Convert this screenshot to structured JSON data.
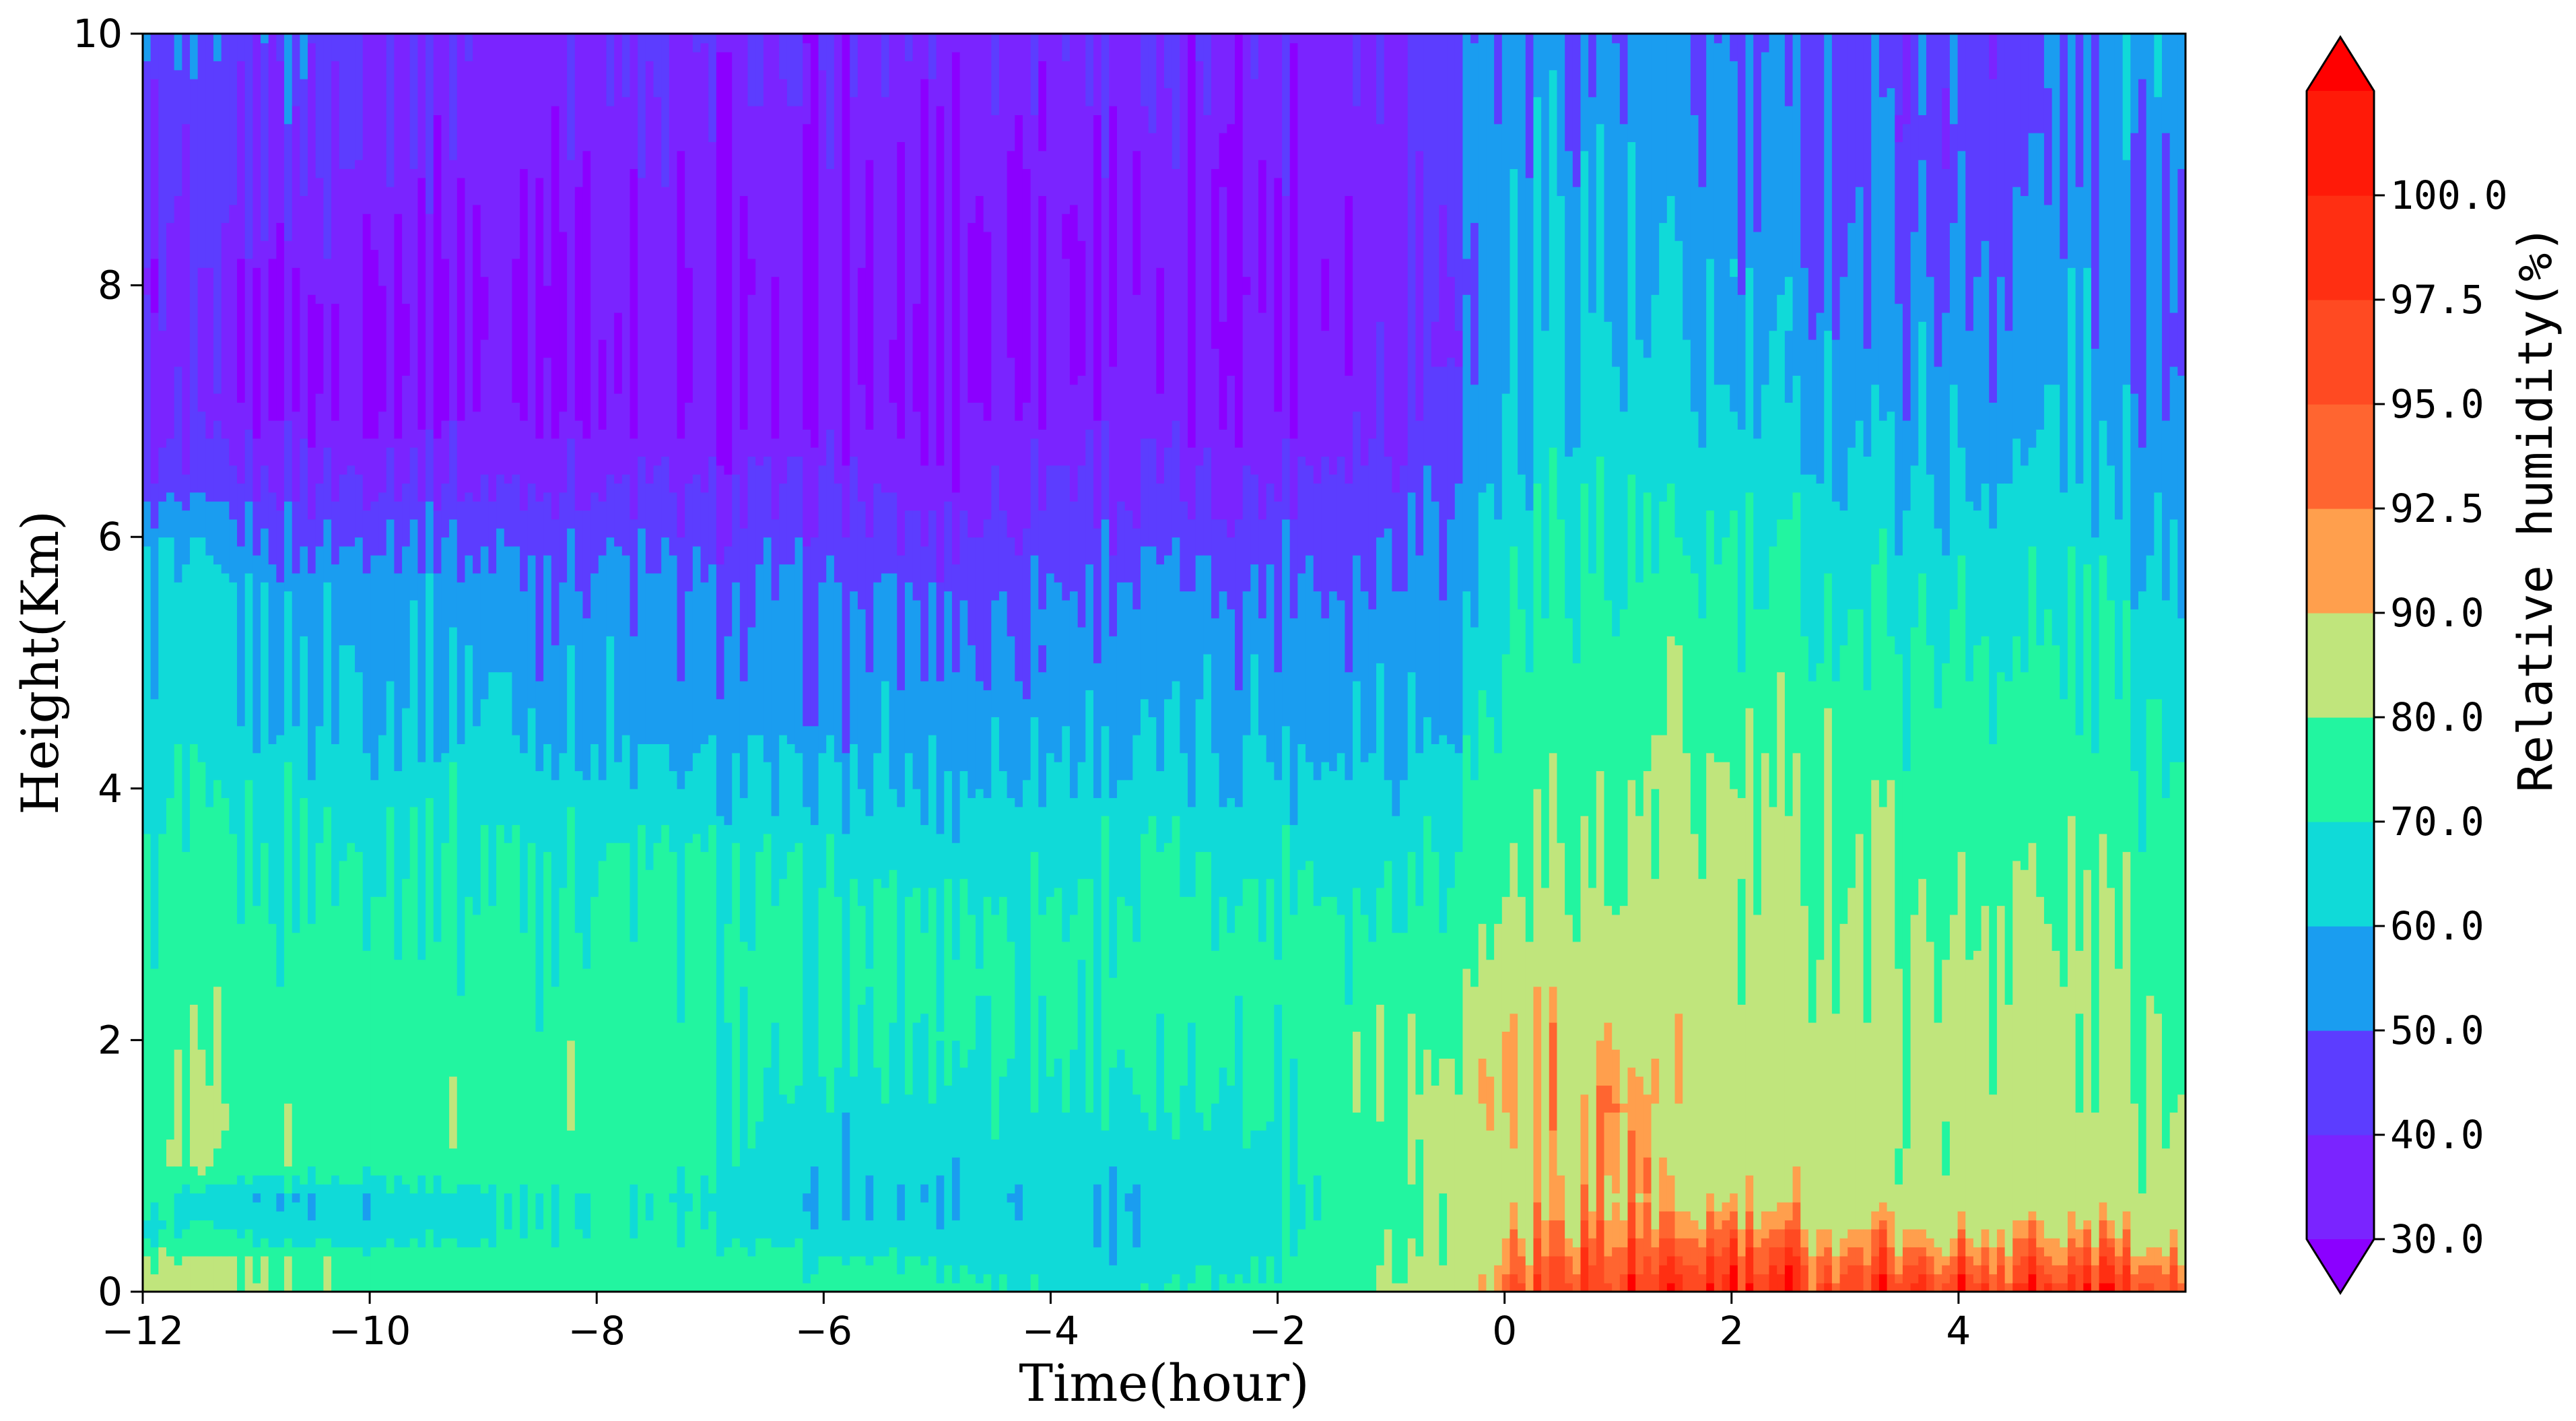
{
  "chart_data": {
    "type": "heatmap",
    "subtype": "filled-contour",
    "title": "",
    "xlabel": "Time(hour)",
    "ylabel": "Height(Km)",
    "xlim": [
      -12,
      6
    ],
    "ylim": [
      0,
      10
    ],
    "xticks": [
      -12,
      -10,
      -8,
      -6,
      -4,
      -2,
      0,
      2,
      4
    ],
    "xtick_labels": [
      "−12",
      "−10",
      "−8",
      "−6",
      "−4",
      "−2",
      "0",
      "2",
      "4"
    ],
    "yticks": [
      0,
      2,
      4,
      6,
      8,
      10
    ],
    "ytick_labels": [
      "0",
      "2",
      "4",
      "6",
      "8",
      "10"
    ],
    "grid": false,
    "colorbar": {
      "label": "Relative humidity(%)",
      "position": "right",
      "levels": [
        30.0,
        40.0,
        50.0,
        60.0,
        70.0,
        80.0,
        90.0,
        92.5,
        95.0,
        97.5,
        100.0
      ],
      "level_labels": [
        "30.0",
        "40.0",
        "50.0",
        "60.0",
        "70.0",
        "80.0",
        "90.0",
        "92.5",
        "95.0",
        "97.5",
        "100.0"
      ],
      "colors": [
        "#7a24ff",
        "#5c3dff",
        "#1a9df0",
        "#10dad8",
        "#22f5a0",
        "#c0e57c",
        "#ff9f4d",
        "#ff6530",
        "#ff4a22",
        "#ff2f12",
        "#ff1a08"
      ],
      "extend_low_color": "#8b00ff",
      "extend_high_color": "#ff0000"
    },
    "profile_heights": [
      0,
      0.25,
      0.5,
      0.75,
      1,
      1.5,
      2,
      2.5,
      3,
      3.5,
      4,
      4.5,
      5,
      5.5,
      6,
      6.5,
      7,
      7.5,
      8,
      8.5,
      9,
      9.5,
      10
    ],
    "times": [
      -12,
      -11.5,
      -11,
      -10.5,
      -10,
      -9.5,
      -9,
      -8.5,
      -8,
      -7.5,
      -7,
      -6.5,
      -6,
      -5.5,
      -5,
      -4.5,
      -4,
      -3.5,
      -3,
      -2.5,
      -2,
      -1.5,
      -1,
      -0.5,
      0,
      0.5,
      1,
      1.5,
      2,
      2.5,
      3,
      3.5,
      4,
      4.5,
      5,
      5.5,
      6
    ],
    "profiles": [
      [
        86,
        82,
        66,
        78,
        76,
        76,
        74,
        74,
        73,
        70,
        67,
        63,
        62,
        61,
        58,
        43,
        36,
        35,
        35,
        38,
        40,
        44,
        45
      ],
      [
        84,
        80,
        70,
        64,
        80,
        81,
        76,
        74,
        73,
        71,
        68,
        64,
        62,
        60,
        56,
        42,
        35,
        34,
        34,
        37,
        40,
        43,
        44
      ],
      [
        82,
        78,
        66,
        62,
        76,
        76,
        75,
        74,
        72,
        70,
        67,
        63,
        60,
        58,
        50,
        40,
        33,
        31,
        32,
        36,
        40,
        43,
        45
      ],
      [
        80,
        78,
        64,
        62,
        76,
        76,
        75,
        74,
        72,
        70,
        66,
        62,
        60,
        57,
        48,
        39,
        33,
        31,
        33,
        37,
        41,
        45,
        46
      ],
      [
        78,
        76,
        64,
        64,
        76,
        76,
        75,
        74,
        72,
        70,
        66,
        62,
        60,
        58,
        50,
        40,
        33,
        31,
        32,
        36,
        40,
        42,
        43
      ],
      [
        76,
        76,
        66,
        66,
        76,
        76,
        75,
        74,
        72,
        70,
        66,
        62,
        60,
        58,
        50,
        40,
        33,
        31,
        31,
        33,
        36,
        38,
        40
      ],
      [
        76,
        76,
        68,
        68,
        76,
        76,
        75,
        74,
        72,
        70,
        66,
        62,
        58,
        56,
        48,
        38,
        32,
        30,
        30,
        32,
        34,
        36,
        38
      ],
      [
        76,
        76,
        70,
        70,
        76,
        77,
        76,
        74,
        72,
        70,
        65,
        60,
        56,
        54,
        47,
        38,
        32,
        31,
        30,
        32,
        34,
        36,
        38
      ],
      [
        76,
        76,
        72,
        72,
        76,
        77,
        76,
        74,
        72,
        70,
        64,
        58,
        56,
        54,
        48,
        38,
        32,
        31,
        31,
        33,
        35,
        37,
        39
      ],
      [
        76,
        76,
        70,
        68,
        74,
        76,
        75,
        74,
        72,
        68,
        62,
        56,
        54,
        52,
        45,
        37,
        31,
        30,
        30,
        32,
        34,
        36,
        38
      ],
      [
        76,
        74,
        68,
        66,
        70,
        72,
        72,
        72,
        71,
        68,
        62,
        56,
        52,
        50,
        42,
        36,
        31,
        30,
        30,
        31,
        33,
        35,
        37
      ],
      [
        76,
        72,
        64,
        62,
        64,
        68,
        71,
        72,
        70,
        67,
        61,
        55,
        52,
        50,
        43,
        37,
        32,
        31,
        30,
        31,
        33,
        35,
        37
      ],
      [
        76,
        70,
        62,
        60,
        62,
        66,
        70,
        72,
        70,
        66,
        60,
        55,
        52,
        50,
        44,
        38,
        32,
        31,
        30,
        31,
        33,
        35,
        37
      ],
      [
        76,
        70,
        62,
        60,
        62,
        66,
        70,
        72,
        70,
        66,
        60,
        55,
        52,
        50,
        42,
        36,
        31,
        30,
        30,
        31,
        33,
        35,
        36
      ],
      [
        74,
        68,
        64,
        62,
        64,
        68,
        71,
        72,
        70,
        66,
        60,
        55,
        51,
        48,
        40,
        35,
        31,
        30,
        30,
        31,
        33,
        35,
        36
      ],
      [
        72,
        68,
        64,
        62,
        64,
        68,
        72,
        73,
        71,
        67,
        61,
        56,
        52,
        50,
        42,
        36,
        32,
        31,
        30,
        31,
        33,
        35,
        37
      ],
      [
        70,
        66,
        64,
        62,
        64,
        68,
        72,
        73,
        71,
        67,
        62,
        57,
        54,
        52,
        46,
        40,
        34,
        32,
        31,
        32,
        34,
        36,
        38
      ],
      [
        68,
        64,
        62,
        62,
        64,
        68,
        72,
        73,
        71,
        68,
        63,
        58,
        55,
        52,
        46,
        40,
        34,
        32,
        31,
        32,
        34,
        36,
        38
      ],
      [
        70,
        66,
        62,
        62,
        64,
        68,
        72,
        74,
        72,
        68,
        63,
        58,
        55,
        52,
        45,
        38,
        33,
        31,
        30,
        31,
        33,
        35,
        36
      ],
      [
        72,
        68,
        64,
        64,
        66,
        70,
        73,
        74,
        72,
        68,
        63,
        58,
        55,
        52,
        45,
        38,
        33,
        31,
        31,
        32,
        34,
        36,
        37
      ],
      [
        74,
        70,
        66,
        66,
        68,
        72,
        74,
        75,
        72,
        68,
        63,
        58,
        55,
        52,
        46,
        40,
        34,
        32,
        31,
        32,
        34,
        36,
        38
      ],
      [
        78,
        76,
        74,
        72,
        74,
        78,
        76,
        74,
        72,
        68,
        63,
        58,
        55,
        52,
        48,
        42,
        36,
        34,
        33,
        34,
        36,
        38,
        40
      ],
      [
        82,
        80,
        78,
        76,
        78,
        80,
        78,
        75,
        72,
        68,
        64,
        59,
        56,
        54,
        50,
        44,
        38,
        36,
        35,
        36,
        38,
        40,
        42
      ],
      [
        86,
        84,
        82,
        82,
        84,
        84,
        82,
        78,
        74,
        70,
        66,
        62,
        58,
        56,
        54,
        50,
        46,
        44,
        44,
        46,
        48,
        50,
        52
      ],
      [
        94,
        92,
        90,
        88,
        88,
        90,
        90,
        86,
        82,
        78,
        76,
        72,
        70,
        68,
        66,
        62,
        60,
        58,
        58,
        58,
        56,
        54,
        52
      ],
      [
        96,
        94,
        92,
        90,
        90,
        91,
        90,
        86,
        83,
        80,
        78,
        76,
        74,
        72,
        70,
        68,
        66,
        64,
        62,
        60,
        58,
        56,
        54
      ],
      [
        97,
        95,
        92,
        90,
        91,
        92,
        90,
        86,
        82,
        79,
        77,
        75,
        73,
        71,
        68,
        65,
        62,
        60,
        58,
        56,
        54,
        52,
        50
      ],
      [
        98,
        95,
        92,
        89,
        88,
        86,
        85,
        84,
        83,
        82,
        80,
        78,
        76,
        73,
        69,
        66,
        62,
        60,
        58,
        56,
        54,
        52,
        50
      ],
      [
        98,
        96,
        92,
        88,
        86,
        84,
        84,
        84,
        83,
        82,
        80,
        78,
        74,
        72,
        68,
        64,
        60,
        58,
        56,
        54,
        52,
        50,
        49
      ],
      [
        98,
        96,
        92,
        88,
        86,
        84,
        84,
        83,
        82,
        81,
        78,
        76,
        74,
        72,
        68,
        63,
        59,
        56,
        54,
        52,
        50,
        48,
        47
      ],
      [
        98,
        95,
        91,
        87,
        85,
        84,
        84,
        83,
        82,
        80,
        78,
        76,
        73,
        70,
        66,
        62,
        58,
        55,
        53,
        51,
        49,
        48,
        46
      ],
      [
        98,
        94,
        90,
        86,
        84,
        84,
        84,
        82,
        80,
        79,
        77,
        75,
        72,
        69,
        65,
        61,
        57,
        54,
        52,
        50,
        48,
        46,
        45
      ],
      [
        98,
        94,
        90,
        86,
        84,
        83,
        83,
        82,
        80,
        78,
        76,
        74,
        71,
        68,
        64,
        60,
        56,
        53,
        51,
        49,
        47,
        46,
        45
      ],
      [
        98,
        94,
        90,
        86,
        84,
        83,
        83,
        82,
        80,
        78,
        76,
        74,
        71,
        68,
        64,
        60,
        56,
        53,
        51,
        49,
        47,
        46,
        45
      ],
      [
        98,
        94,
        90,
        86,
        84,
        83,
        83,
        82,
        80,
        78,
        76,
        74,
        71,
        69,
        66,
        63,
        60,
        57,
        55,
        53,
        51,
        50,
        50
      ],
      [
        98,
        94,
        90,
        85,
        84,
        82,
        81,
        80,
        78,
        76,
        74,
        71,
        68,
        65,
        62,
        58,
        55,
        53,
        52,
        53,
        54,
        56,
        58
      ],
      [
        97,
        93,
        88,
        84,
        83,
        81,
        80,
        79,
        77,
        75,
        73,
        70,
        67,
        64,
        60,
        56,
        54,
        52,
        52,
        53,
        55,
        57,
        58
      ]
    ]
  }
}
